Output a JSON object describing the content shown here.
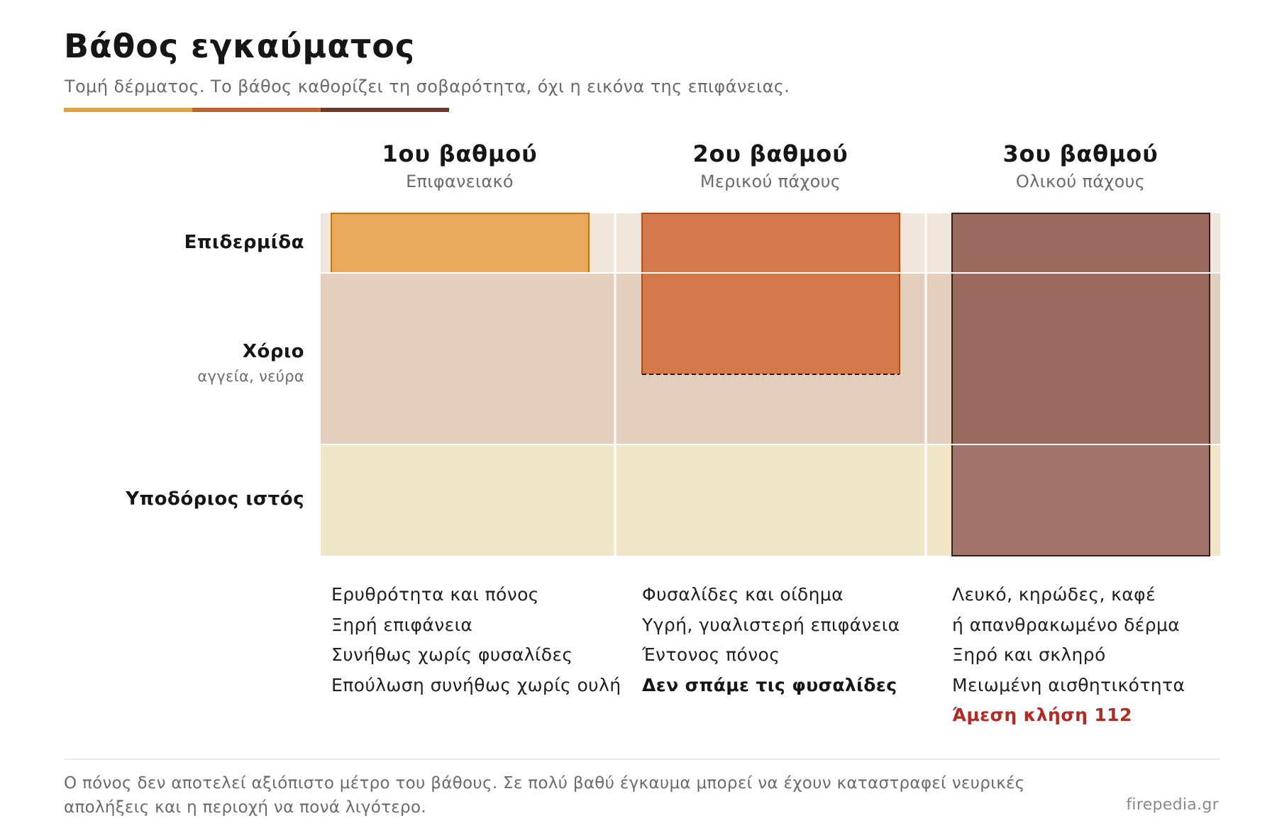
{
  "title": "Βάθος εγκαύματος",
  "subtitle": "Τομή δέρματος. Το βάθος καθορίζει τη σοβαρότητα, όχι η εικόνα της επιφάνειας.",
  "accent_colors": [
    "#dfa447",
    "#c0642f",
    "#6b3a2c"
  ],
  "layers": [
    {
      "name": "Επιδερμίδα",
      "note": "",
      "color": "#f1e6db"
    },
    {
      "name": "Χόριο",
      "note": "αγγεία, νεύρα",
      "color": "#e3cfbd"
    },
    {
      "name": "Υποδόριος ιστός",
      "note": "",
      "color": "#f1e7c8"
    }
  ],
  "degrees": [
    {
      "grade": "1ου βαθμού",
      "kind": "Επιφανειακό",
      "fill": "#e9a95b",
      "stroke": "#b5761a",
      "depth": "Επιδερμίδα",
      "signs": [
        {
          "text": "Ερυθρότητα και πόνος",
          "style": "normal"
        },
        {
          "text": "Ξηρή επιφάνεια",
          "style": "normal"
        },
        {
          "text": "Συνήθως χωρίς φυσαλίδες",
          "style": "normal"
        },
        {
          "text": "Επούλωση συνήθως χωρίς ουλή",
          "style": "normal"
        }
      ]
    },
    {
      "grade": "2ου βαθμού",
      "kind": "Μερικού πάχους",
      "fill": "#d5784a",
      "stroke": "#a6501f",
      "depth": "Χόριο (μερικώς)",
      "signs": [
        {
          "text": "Φυσαλίδες και οίδημα",
          "style": "normal"
        },
        {
          "text": "Υγρή, γυαλιστερή επιφάνεια",
          "style": "normal"
        },
        {
          "text": "Έντονος πόνος",
          "style": "normal"
        },
        {
          "text": "Δεν σπάμε τις φυσαλίδες",
          "style": "strong"
        }
      ]
    },
    {
      "grade": "3ου βαθμού",
      "kind": "Ολικού πάχους",
      "fill": "#9b6a5e",
      "stroke": "#3e1c1c",
      "depth": "Υποδόριος ιστός",
      "signs": [
        {
          "text": "Λευκό, κηρώδες, καφέ",
          "style": "normal"
        },
        {
          "text": "ή απανθρακωμένο δέρμα",
          "style": "normal"
        },
        {
          "text": "Ξηρό και σκληρό",
          "style": "normal"
        },
        {
          "text": "Μειωμένη αισθητικότητα",
          "style": "normal"
        },
        {
          "text": "Άμεση κλήση 112",
          "style": "alert"
        }
      ]
    }
  ],
  "footnote": "Ο πόνος δεν αποτελεί αξιόπιστο μέτρο του βάθους. Σε πολύ βαθύ έγκαυμα μπορεί να έχουν καταστραφεί νευρικές απολήξεις και η περιοχή να πονά λιγότερο.",
  "source": "firepedia.gr"
}
